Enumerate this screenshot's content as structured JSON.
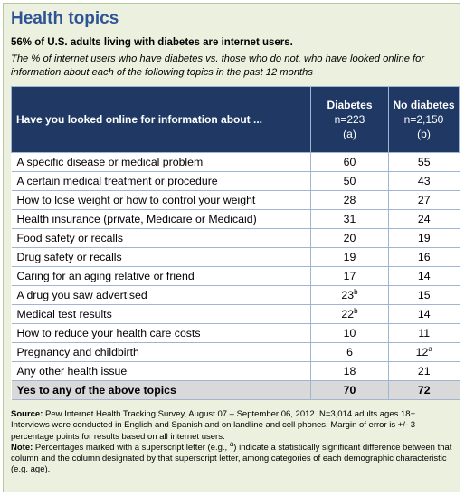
{
  "title": "Health topics",
  "subtitle": "56% of U.S. adults living with diabetes are internet users.",
  "description": "The % of internet users who have diabetes vs. those who do not, who have looked online for information about each of the following topics in the past 12 months",
  "table": {
    "header": {
      "question": "Have you looked online for information about ...",
      "col1_name": "Diabetes",
      "col1_n": "n=223",
      "col1_code": "(a)",
      "col2_name": "No diabetes",
      "col2_n": "n=2,150",
      "col2_code": "(b)"
    },
    "rows": [
      {
        "topic": "A specific disease or medical problem",
        "diabetes": "60",
        "diabetes_sup": "",
        "no_diabetes": "55",
        "no_diabetes_sup": ""
      },
      {
        "topic": "A certain medical treatment or procedure",
        "diabetes": "50",
        "diabetes_sup": "",
        "no_diabetes": "43",
        "no_diabetes_sup": ""
      },
      {
        "topic": "How to lose weight or how to control your weight",
        "diabetes": "28",
        "diabetes_sup": "",
        "no_diabetes": "27",
        "no_diabetes_sup": ""
      },
      {
        "topic": "Health insurance (private, Medicare or Medicaid)",
        "diabetes": "31",
        "diabetes_sup": "",
        "no_diabetes": "24",
        "no_diabetes_sup": ""
      },
      {
        "topic": "Food safety or recalls",
        "diabetes": "20",
        "diabetes_sup": "",
        "no_diabetes": "19",
        "no_diabetes_sup": ""
      },
      {
        "topic": "Drug safety or recalls",
        "diabetes": "19",
        "diabetes_sup": "",
        "no_diabetes": "16",
        "no_diabetes_sup": ""
      },
      {
        "topic": "Caring for an aging relative or friend",
        "diabetes": "17",
        "diabetes_sup": "",
        "no_diabetes": "14",
        "no_diabetes_sup": ""
      },
      {
        "topic": "A drug you saw advertised",
        "diabetes": "23",
        "diabetes_sup": "b",
        "no_diabetes": "15",
        "no_diabetes_sup": ""
      },
      {
        "topic": "Medical test results",
        "diabetes": "22",
        "diabetes_sup": "b",
        "no_diabetes": "14",
        "no_diabetes_sup": ""
      },
      {
        "topic": "How to reduce your health care costs",
        "diabetes": "10",
        "diabetes_sup": "",
        "no_diabetes": "11",
        "no_diabetes_sup": ""
      },
      {
        "topic": "Pregnancy and childbirth",
        "diabetes": "6",
        "diabetes_sup": "",
        "no_diabetes": "12",
        "no_diabetes_sup": "a"
      },
      {
        "topic": "Any other health issue",
        "diabetes": "18",
        "diabetes_sup": "",
        "no_diabetes": "21",
        "no_diabetes_sup": ""
      }
    ],
    "total": {
      "topic": "Yes to any of the above topics",
      "diabetes": "70",
      "no_diabetes": "72"
    }
  },
  "footer": {
    "source_label": "Source:",
    "source_text": " Pew Internet Health Tracking Survey, August 07 – September 06, 2012. N=3,014 adults ages 18+. Interviews were conducted in English and Spanish and on landline and cell phones. Margin of error is +/- 3 percentage points for results based on all internet users.",
    "note_label": "Note:",
    "note_text_1": " Percentages marked with a superscript letter (e.g., ",
    "note_sup": "a",
    "note_text_2": ") indicate a statistically significant difference between that column and the column designated by that superscript letter, among categories of each demographic characteristic (e.g. age)."
  },
  "colors": {
    "title": "#2f5496",
    "header_bg": "#1f3864",
    "background": "#ebf1de",
    "total_row_bg": "#d9d9d9"
  }
}
